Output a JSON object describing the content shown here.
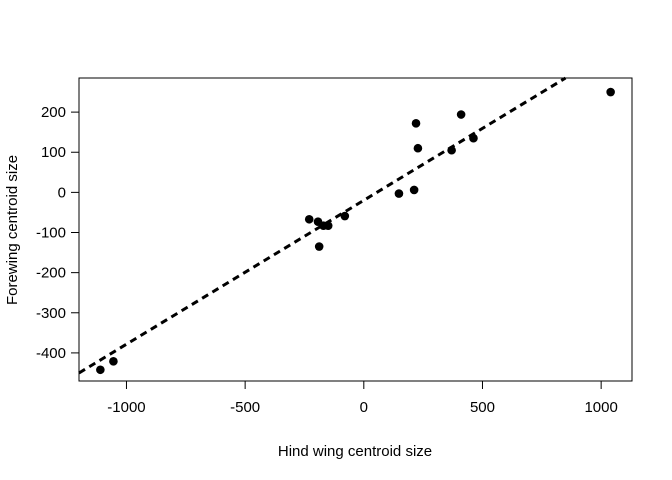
{
  "chart_data": {
    "type": "scatter",
    "title": "",
    "xlabel": "Hind wing centroid size",
    "ylabel": "Forewing centroid size",
    "xlim": [
      -1200,
      1130
    ],
    "ylim": [
      -470,
      285
    ],
    "xticks": [
      -1000,
      -500,
      0,
      500,
      1000
    ],
    "yticks": [
      -400,
      -300,
      -200,
      -100,
      0,
      100,
      200
    ],
    "xtick_labels": [
      "-1000",
      "-500",
      "0",
      "500",
      "1000"
    ],
    "ytick_labels": [
      "-400",
      "-300",
      "-200",
      "-100",
      "0",
      "100",
      "200"
    ],
    "grid": false,
    "legend": "none",
    "point_color": "#000000",
    "points": [
      {
        "x": -1110,
        "y": -442
      },
      {
        "x": -1055,
        "y": -421
      },
      {
        "x": -230,
        "y": -67
      },
      {
        "x": -193,
        "y": -73
      },
      {
        "x": -188,
        "y": -135
      },
      {
        "x": -170,
        "y": -83
      },
      {
        "x": -150,
        "y": -83
      },
      {
        "x": -80,
        "y": -59
      },
      {
        "x": 148,
        "y": -3
      },
      {
        "x": 212,
        "y": 6
      },
      {
        "x": 220,
        "y": 172
      },
      {
        "x": 228,
        "y": 110
      },
      {
        "x": 370,
        "y": 105
      },
      {
        "x": 410,
        "y": 194
      },
      {
        "x": 462,
        "y": 135
      },
      {
        "x": 1040,
        "y": 250
      }
    ],
    "fit_line": {
      "style": "dashed",
      "x": [
        -1200,
        850
      ],
      "y": [
        -450,
        285
      ]
    }
  }
}
